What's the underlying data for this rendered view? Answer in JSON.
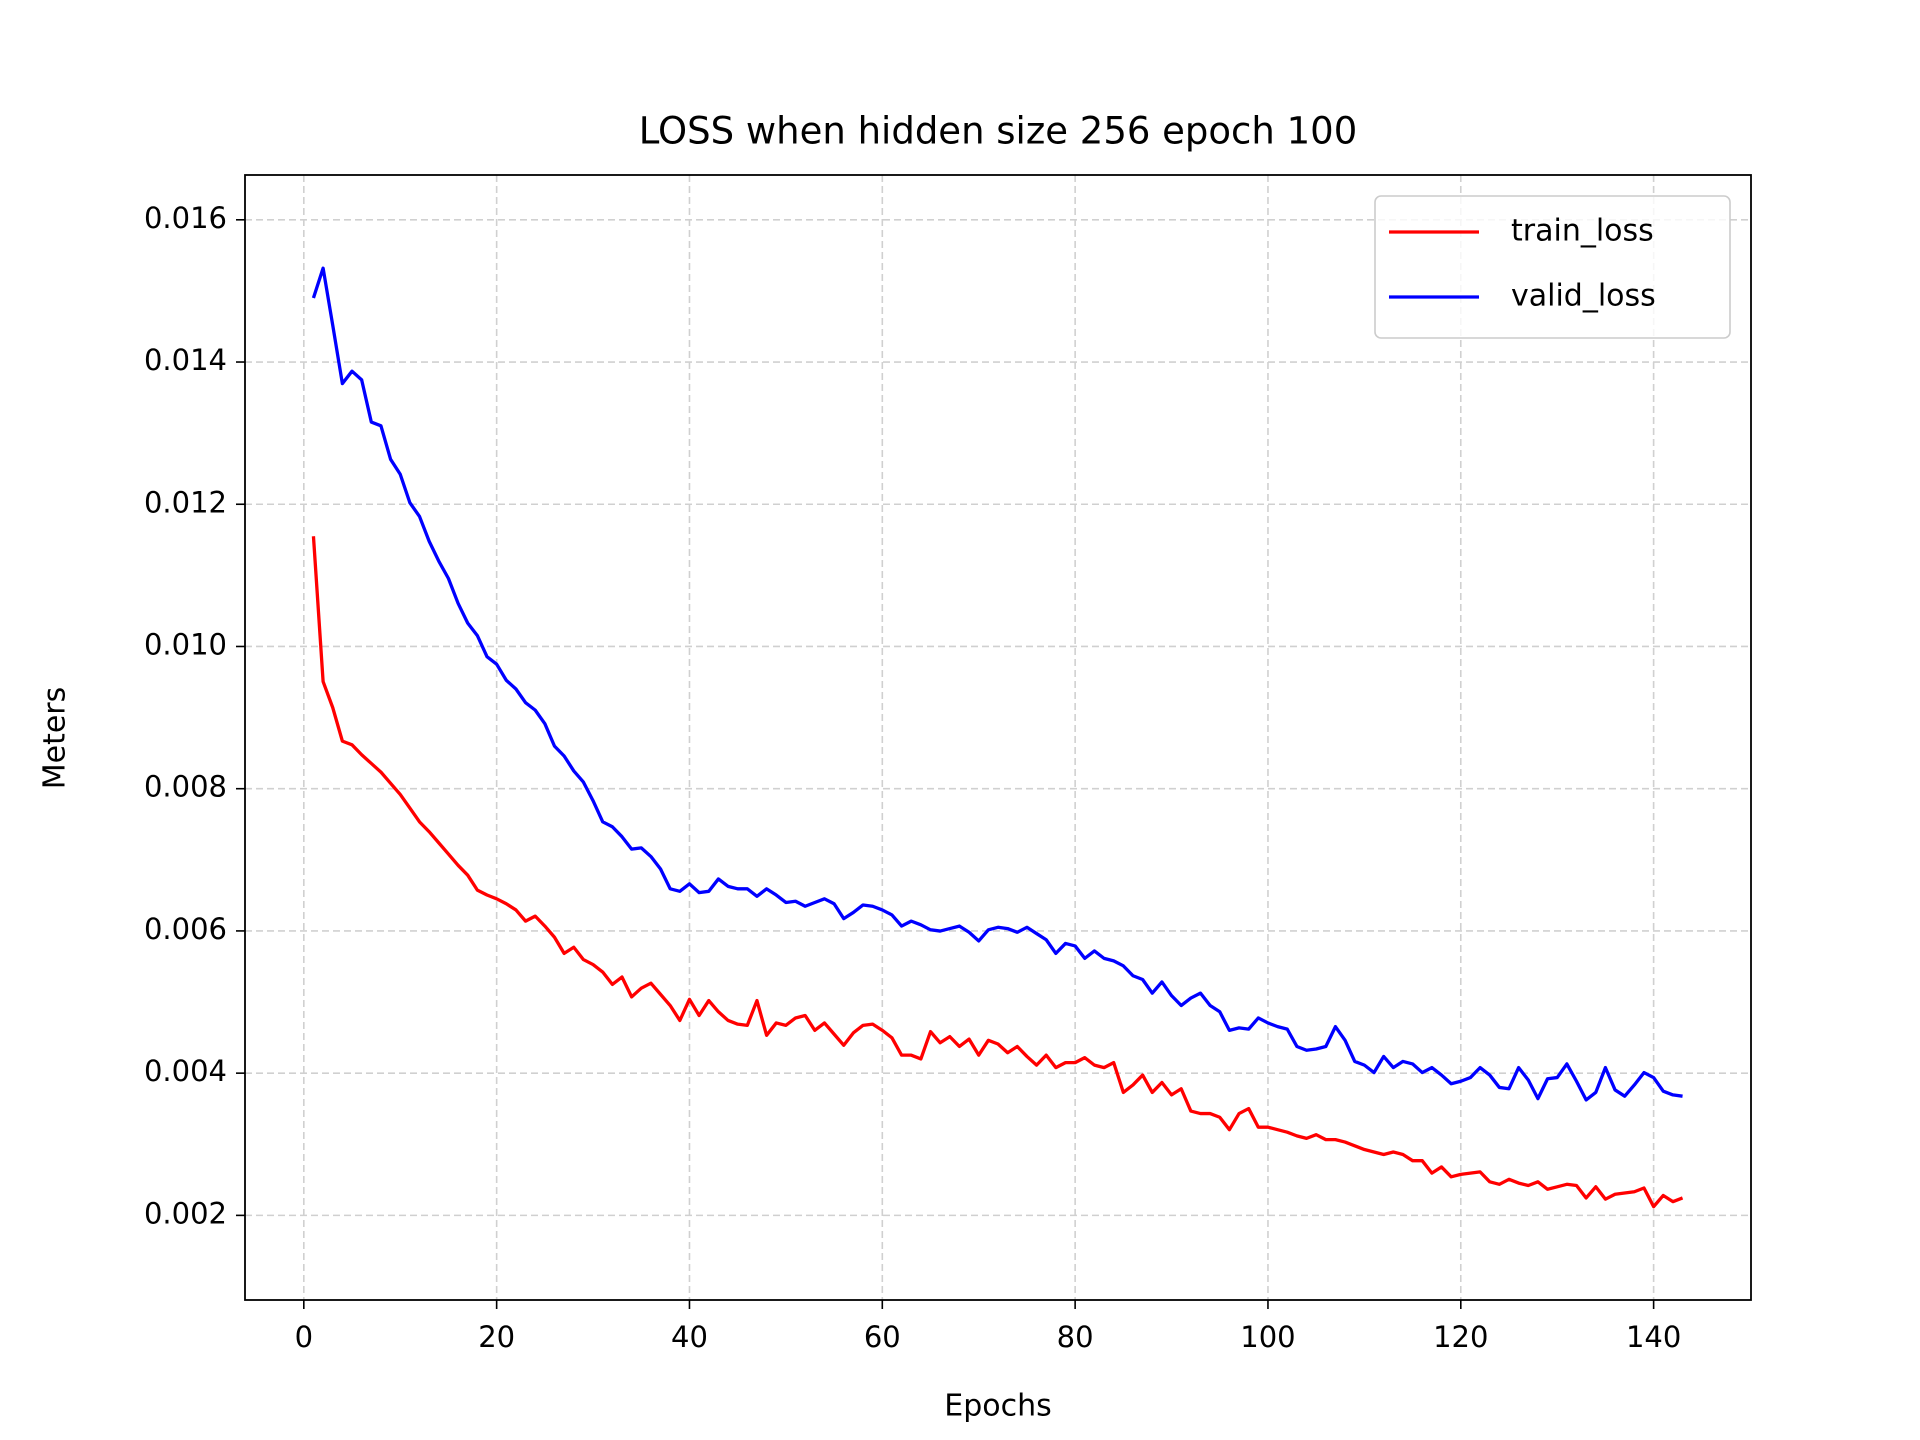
{
  "chart_data": {
    "type": "line",
    "title": "LOSS when hidden size 256 epoch 100",
    "xlabel": "Epochs",
    "ylabel": "Meters",
    "x": [
      1,
      2,
      3,
      4,
      5,
      6,
      7,
      8,
      9,
      10,
      11,
      12,
      13,
      14,
      15,
      16,
      17,
      18,
      19,
      20,
      21,
      22,
      23,
      24,
      25,
      26,
      27,
      28,
      29,
      30,
      31,
      32,
      33,
      34,
      35,
      36,
      37,
      38,
      39,
      40,
      41,
      42,
      43,
      44,
      45,
      46,
      47,
      48,
      49,
      50,
      51,
      52,
      53,
      54,
      55,
      56,
      57,
      58,
      59,
      60,
      61,
      62,
      63,
      64,
      65,
      66,
      67,
      68,
      69,
      70,
      71,
      72,
      73,
      74,
      75,
      76,
      77,
      78,
      79,
      80,
      81,
      82,
      83,
      84,
      85,
      86,
      87,
      88,
      89,
      90,
      91,
      92,
      93,
      94,
      95,
      96,
      97,
      98,
      99,
      100,
      101,
      102,
      103,
      104,
      105,
      106,
      107,
      108,
      109,
      110,
      111,
      112,
      113,
      114,
      115,
      116,
      117,
      118,
      119,
      120,
      121,
      122,
      123,
      124,
      125,
      126,
      127,
      128,
      129,
      130,
      131,
      132,
      133,
      134,
      135,
      136,
      137,
      138,
      139,
      140,
      141,
      142,
      143
    ],
    "series": [
      {
        "name": "train_loss",
        "color": "#ff0000",
        "values": [
          0.01155,
          0.009507,
          0.00914,
          0.008669,
          0.008617,
          0.008477,
          0.008355,
          0.008233,
          0.008076,
          0.007919,
          0.007727,
          0.007534,
          0.007395,
          0.007238,
          0.007081,
          0.006923,
          0.006784,
          0.006574,
          0.006505,
          0.006452,
          0.006382,
          0.006295,
          0.006138,
          0.006208,
          0.006068,
          0.005911,
          0.005684,
          0.005771,
          0.005597,
          0.005527,
          0.005422,
          0.005248,
          0.005352,
          0.005073,
          0.005195,
          0.005265,
          0.005108,
          0.004951,
          0.004741,
          0.005038,
          0.004811,
          0.005021,
          0.004863,
          0.004741,
          0.004689,
          0.004672,
          0.005021,
          0.004532,
          0.004706,
          0.004672,
          0.004776,
          0.004811,
          0.004602,
          0.004706,
          0.004549,
          0.004392,
          0.004567,
          0.004672,
          0.004689,
          0.004602,
          0.004497,
          0.004253,
          0.004253,
          0.0042,
          0.004584,
          0.004427,
          0.004514,
          0.004375,
          0.004479,
          0.004253,
          0.004462,
          0.00441,
          0.004287,
          0.004375,
          0.004235,
          0.004113,
          0.004253,
          0.004078,
          0.004148,
          0.004148,
          0.004218,
          0.004113,
          0.004078,
          0.004148,
          0.003729,
          0.003834,
          0.003973,
          0.003729,
          0.003869,
          0.003694,
          0.003781,
          0.003467,
          0.003432,
          0.003432,
          0.00338,
          0.003205,
          0.003432,
          0.003502,
          0.00324,
          0.00324,
          0.003205,
          0.00317,
          0.003118,
          0.003083,
          0.003135,
          0.003065,
          0.003065,
          0.003031,
          0.002978,
          0.002926,
          0.002891,
          0.002856,
          0.002891,
          0.002856,
          0.002769,
          0.002769,
          0.002594,
          0.002681,
          0.002542,
          0.002577,
          0.002594,
          0.002612,
          0.002472,
          0.002437,
          0.002507,
          0.002454,
          0.00242,
          0.002472,
          0.002367,
          0.002402,
          0.002437,
          0.00242,
          0.002245,
          0.002402,
          0.002228,
          0.002297,
          0.002315,
          0.002332,
          0.002385,
          0.002123,
          0.00228,
          0.002193,
          0.002245
        ]
      },
      {
        "name": "valid_loss",
        "color": "#0000ff",
        "values": [
          0.014901,
          0.01532,
          0.014517,
          0.013697,
          0.013871,
          0.013749,
          0.013156,
          0.013103,
          0.012632,
          0.012422,
          0.012021,
          0.011829,
          0.01148,
          0.0112,
          0.010956,
          0.010607,
          0.010328,
          0.010153,
          0.009856,
          0.009751,
          0.009525,
          0.009402,
          0.00921,
          0.009105,
          0.008914,
          0.008599,
          0.00846,
          0.00825,
          0.008093,
          0.007831,
          0.007534,
          0.007465,
          0.007325,
          0.00715,
          0.007168,
          0.007046,
          0.006871,
          0.006592,
          0.006557,
          0.006662,
          0.006539,
          0.006557,
          0.006731,
          0.006627,
          0.006592,
          0.006592,
          0.006487,
          0.006592,
          0.006505,
          0.0064,
          0.006417,
          0.006347,
          0.0064,
          0.006452,
          0.006382,
          0.006173,
          0.00626,
          0.006365,
          0.006347,
          0.006295,
          0.006225,
          0.006068,
          0.006138,
          0.006086,
          0.006016,
          0.005998,
          0.006033,
          0.006068,
          0.005981,
          0.005859,
          0.006016,
          0.006051,
          0.006033,
          0.005981,
          0.006051,
          0.005963,
          0.005876,
          0.005684,
          0.005824,
          0.005789,
          0.005614,
          0.005719,
          0.005614,
          0.005579,
          0.005509,
          0.00537,
          0.005317,
          0.005125,
          0.005282,
          0.00509,
          0.004951,
          0.005056,
          0.005125,
          0.004951,
          0.004863,
          0.004602,
          0.004637,
          0.004619,
          0.004776,
          0.004706,
          0.004654,
          0.004619,
          0.004375,
          0.004322,
          0.00434,
          0.004375,
          0.004654,
          0.004462,
          0.004165,
          0.004113,
          0.004008,
          0.004235,
          0.004078,
          0.004165,
          0.00413,
          0.004008,
          0.004078,
          0.003973,
          0.003851,
          0.003886,
          0.003938,
          0.004078,
          0.003973,
          0.003799,
          0.003781,
          0.004078,
          0.003903,
          0.003642,
          0.003921,
          0.003938,
          0.00413,
          0.003886,
          0.003624,
          0.003729,
          0.004078,
          0.003764,
          0.003676,
          0.003834,
          0.004008,
          0.003938,
          0.003746,
          0.003694,
          0.003676
        ]
      }
    ],
    "xlim": [
      -6.1,
      150.1
    ],
    "xticks": [
      0,
      20,
      40,
      60,
      80,
      100,
      120,
      140
    ],
    "ylim": [
      0.00081,
      0.01663
    ],
    "yticks": [
      0.002,
      0.004,
      0.006,
      0.008,
      {
        "value": 0.01,
        "label": "0.010"
      },
      0.012,
      0.014,
      0.016
    ],
    "grid": true,
    "legend": "upper right"
  }
}
